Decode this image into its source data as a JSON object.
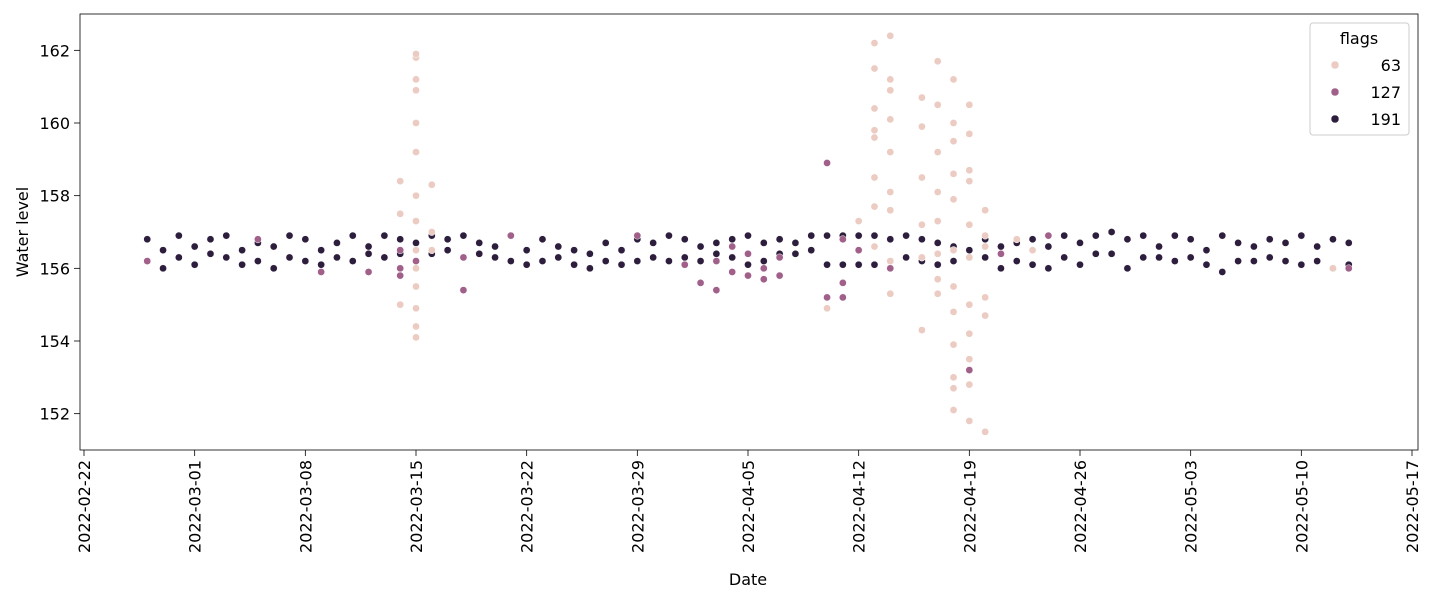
{
  "chart_data": {
    "type": "scatter",
    "xlabel": "Date",
    "ylabel": "Water level",
    "xlim": [
      "2022-02-22",
      "2022-05-17"
    ],
    "xticks": [
      "2022-02-22",
      "2022-03-01",
      "2022-03-08",
      "2022-03-15",
      "2022-03-22",
      "2022-03-29",
      "2022-04-05",
      "2022-04-12",
      "2022-04-19",
      "2022-04-26",
      "2022-05-03",
      "2022-05-10",
      "2022-05-17"
    ],
    "ylim": [
      151,
      163
    ],
    "yticks": [
      152,
      154,
      156,
      158,
      160,
      162
    ],
    "legend_title": "flags",
    "legend_position": "upper right",
    "series": [
      {
        "name": "63",
        "color": "#ebcbc2",
        "x": [
          "2022-03-14",
          "2022-03-14",
          "2022-03-14",
          "2022-03-15",
          "2022-03-15",
          "2022-03-15",
          "2022-03-15",
          "2022-03-15",
          "2022-03-15",
          "2022-03-15",
          "2022-03-15",
          "2022-03-15",
          "2022-03-15",
          "2022-03-15",
          "2022-03-15",
          "2022-03-15",
          "2022-03-15",
          "2022-03-16",
          "2022-03-16",
          "2022-03-16",
          "2022-04-10",
          "2022-04-12",
          "2022-04-13",
          "2022-04-13",
          "2022-04-13",
          "2022-04-13",
          "2022-04-13",
          "2022-04-13",
          "2022-04-13",
          "2022-04-13",
          "2022-04-14",
          "2022-04-14",
          "2022-04-14",
          "2022-04-14",
          "2022-04-14",
          "2022-04-14",
          "2022-04-14",
          "2022-04-14",
          "2022-04-14",
          "2022-04-16",
          "2022-04-16",
          "2022-04-16",
          "2022-04-16",
          "2022-04-16",
          "2022-04-16",
          "2022-04-17",
          "2022-04-17",
          "2022-04-17",
          "2022-04-17",
          "2022-04-17",
          "2022-04-17",
          "2022-04-17",
          "2022-04-17",
          "2022-04-18",
          "2022-04-18",
          "2022-04-18",
          "2022-04-18",
          "2022-04-18",
          "2022-04-18",
          "2022-04-18",
          "2022-04-18",
          "2022-04-18",
          "2022-04-18",
          "2022-04-18",
          "2022-04-18",
          "2022-04-19",
          "2022-04-19",
          "2022-04-19",
          "2022-04-19",
          "2022-04-19",
          "2022-04-19",
          "2022-04-19",
          "2022-04-19",
          "2022-04-19",
          "2022-04-19",
          "2022-04-19",
          "2022-04-20",
          "2022-04-20",
          "2022-04-20",
          "2022-04-20",
          "2022-04-20",
          "2022-04-20",
          "2022-04-22",
          "2022-04-23",
          "2022-05-12"
        ],
        "values": [
          157.5,
          155.0,
          158.4,
          161.8,
          161.2,
          160.0,
          159.2,
          158.0,
          157.3,
          156.5,
          155.5,
          154.4,
          154.1,
          154.9,
          156.0,
          160.9,
          161.9,
          158.3,
          156.5,
          157.0,
          154.9,
          157.3,
          162.2,
          161.5,
          160.4,
          159.6,
          158.5,
          157.7,
          156.6,
          159.8,
          162.4,
          161.2,
          160.1,
          159.2,
          158.1,
          155.3,
          157.6,
          156.2,
          160.9,
          159.9,
          158.5,
          157.2,
          156.3,
          154.3,
          160.7,
          161.7,
          160.5,
          159.2,
          158.1,
          157.3,
          156.4,
          155.7,
          155.3,
          161.2,
          160.0,
          159.5,
          158.6,
          157.9,
          156.5,
          155.5,
          154.8,
          153.9,
          153.0,
          152.7,
          152.1,
          160.5,
          159.7,
          158.4,
          157.2,
          156.3,
          155.0,
          154.2,
          153.5,
          152.8,
          151.8,
          158.7,
          157.6,
          156.6,
          155.2,
          154.7,
          151.5,
          156.9,
          156.8,
          156.5,
          156.0
        ]
      },
      {
        "name": "127",
        "color": "#a1608a",
        "x": [
          "2022-02-26",
          "2022-03-05",
          "2022-03-09",
          "2022-03-12",
          "2022-03-14",
          "2022-03-14",
          "2022-03-14",
          "2022-03-15",
          "2022-03-18",
          "2022-03-18",
          "2022-03-21",
          "2022-03-29",
          "2022-04-01",
          "2022-04-02",
          "2022-04-03",
          "2022-04-03",
          "2022-04-04",
          "2022-04-04",
          "2022-04-05",
          "2022-04-05",
          "2022-04-06",
          "2022-04-06",
          "2022-04-07",
          "2022-04-07",
          "2022-04-10",
          "2022-04-10",
          "2022-04-11",
          "2022-04-11",
          "2022-04-11",
          "2022-04-12",
          "2022-04-14",
          "2022-04-16",
          "2022-04-19",
          "2022-04-21",
          "2022-04-24",
          "2022-05-13"
        ],
        "values": [
          156.2,
          156.8,
          155.9,
          155.9,
          156.0,
          155.8,
          156.5,
          156.2,
          155.4,
          156.3,
          156.9,
          156.9,
          156.1,
          155.6,
          155.4,
          156.2,
          155.9,
          156.6,
          155.8,
          156.4,
          156.0,
          155.7,
          156.3,
          155.8,
          155.2,
          158.9,
          155.6,
          155.2,
          156.8,
          156.5,
          156.0,
          156.3,
          153.2,
          156.4,
          156.9,
          156.0
        ]
      },
      {
        "name": "191",
        "color": "#2d1e3e",
        "x": [
          "2022-02-26",
          "2022-02-26",
          "2022-02-27",
          "2022-02-27",
          "2022-02-28",
          "2022-02-28",
          "2022-03-01",
          "2022-03-01",
          "2022-03-02",
          "2022-03-02",
          "2022-03-03",
          "2022-03-03",
          "2022-03-04",
          "2022-03-04",
          "2022-03-05",
          "2022-03-05",
          "2022-03-06",
          "2022-03-06",
          "2022-03-07",
          "2022-03-07",
          "2022-03-08",
          "2022-03-08",
          "2022-03-09",
          "2022-03-09",
          "2022-03-10",
          "2022-03-10",
          "2022-03-11",
          "2022-03-11",
          "2022-03-12",
          "2022-03-12",
          "2022-03-13",
          "2022-03-13",
          "2022-03-14",
          "2022-03-14",
          "2022-03-15",
          "2022-03-15",
          "2022-03-16",
          "2022-03-16",
          "2022-03-17",
          "2022-03-17",
          "2022-03-18",
          "2022-03-18",
          "2022-03-19",
          "2022-03-19",
          "2022-03-20",
          "2022-03-20",
          "2022-03-21",
          "2022-03-21",
          "2022-03-22",
          "2022-03-22",
          "2022-03-23",
          "2022-03-23",
          "2022-03-24",
          "2022-03-24",
          "2022-03-25",
          "2022-03-25",
          "2022-03-26",
          "2022-03-26",
          "2022-03-27",
          "2022-03-27",
          "2022-03-28",
          "2022-03-28",
          "2022-03-29",
          "2022-03-29",
          "2022-03-30",
          "2022-03-30",
          "2022-03-31",
          "2022-03-31",
          "2022-04-01",
          "2022-04-01",
          "2022-04-02",
          "2022-04-02",
          "2022-04-03",
          "2022-04-03",
          "2022-04-04",
          "2022-04-04",
          "2022-04-05",
          "2022-04-05",
          "2022-04-06",
          "2022-04-06",
          "2022-04-07",
          "2022-04-07",
          "2022-04-08",
          "2022-04-08",
          "2022-04-09",
          "2022-04-09",
          "2022-04-10",
          "2022-04-10",
          "2022-04-11",
          "2022-04-11",
          "2022-04-12",
          "2022-04-12",
          "2022-04-13",
          "2022-04-13",
          "2022-04-14",
          "2022-04-14",
          "2022-04-15",
          "2022-04-15",
          "2022-04-16",
          "2022-04-16",
          "2022-04-17",
          "2022-04-17",
          "2022-04-18",
          "2022-04-18",
          "2022-04-19",
          "2022-04-19",
          "2022-04-20",
          "2022-04-20",
          "2022-04-21",
          "2022-04-21",
          "2022-04-22",
          "2022-04-22",
          "2022-04-23",
          "2022-04-23",
          "2022-04-24",
          "2022-04-24",
          "2022-04-25",
          "2022-04-25",
          "2022-04-26",
          "2022-04-26",
          "2022-04-27",
          "2022-04-27",
          "2022-04-28",
          "2022-04-28",
          "2022-04-29",
          "2022-04-29",
          "2022-04-30",
          "2022-04-30",
          "2022-05-01",
          "2022-05-01",
          "2022-05-02",
          "2022-05-02",
          "2022-05-03",
          "2022-05-03",
          "2022-05-04",
          "2022-05-04",
          "2022-05-05",
          "2022-05-05",
          "2022-05-06",
          "2022-05-06",
          "2022-05-07",
          "2022-05-07",
          "2022-05-08",
          "2022-05-08",
          "2022-05-09",
          "2022-05-09",
          "2022-05-10",
          "2022-05-10",
          "2022-05-11",
          "2022-05-11",
          "2022-05-12",
          "2022-05-12",
          "2022-05-13",
          "2022-05-13"
        ],
        "values": [
          156.8,
          156.2,
          156.5,
          156.0,
          156.9,
          156.3,
          156.6,
          156.1,
          156.8,
          156.4,
          156.9,
          156.3,
          156.5,
          156.1,
          156.7,
          156.2,
          156.6,
          156.0,
          156.9,
          156.3,
          156.8,
          156.2,
          156.5,
          156.1,
          156.7,
          156.3,
          156.9,
          156.2,
          156.6,
          156.4,
          156.9,
          156.3,
          156.8,
          156.4,
          156.7,
          156.2,
          156.9,
          156.4,
          156.8,
          156.5,
          156.9,
          156.3,
          156.7,
          156.4,
          156.6,
          156.3,
          156.9,
          156.2,
          156.5,
          156.1,
          156.8,
          156.2,
          156.6,
          156.3,
          156.5,
          156.1,
          156.4,
          156.0,
          156.7,
          156.2,
          156.5,
          156.1,
          156.8,
          156.2,
          156.7,
          156.3,
          156.9,
          156.2,
          156.8,
          156.3,
          156.6,
          156.2,
          156.7,
          156.4,
          156.8,
          156.3,
          156.9,
          156.1,
          156.7,
          156.2,
          156.8,
          156.4,
          156.7,
          156.4,
          156.9,
          156.5,
          156.9,
          156.1,
          156.9,
          156.1,
          156.9,
          156.1,
          156.9,
          156.1,
          156.8,
          156.2,
          156.9,
          156.3,
          156.8,
          156.2,
          156.7,
          156.1,
          156.6,
          156.2,
          156.5,
          156.3,
          156.8,
          156.3,
          156.6,
          156.0,
          156.7,
          156.2,
          156.8,
          156.1,
          156.6,
          156.0,
          156.9,
          156.3,
          156.7,
          156.1,
          156.9,
          156.4,
          157.0,
          156.4,
          156.8,
          156.0,
          156.9,
          156.3,
          156.6,
          156.3,
          156.9,
          156.2,
          156.8,
          156.3,
          156.5,
          156.1,
          156.9,
          155.9,
          156.7,
          156.2,
          156.6,
          156.2,
          156.8,
          156.3,
          156.7,
          156.2,
          156.9,
          156.1,
          156.6,
          156.2,
          156.8,
          156.0,
          156.7,
          156.1
        ]
      }
    ]
  }
}
